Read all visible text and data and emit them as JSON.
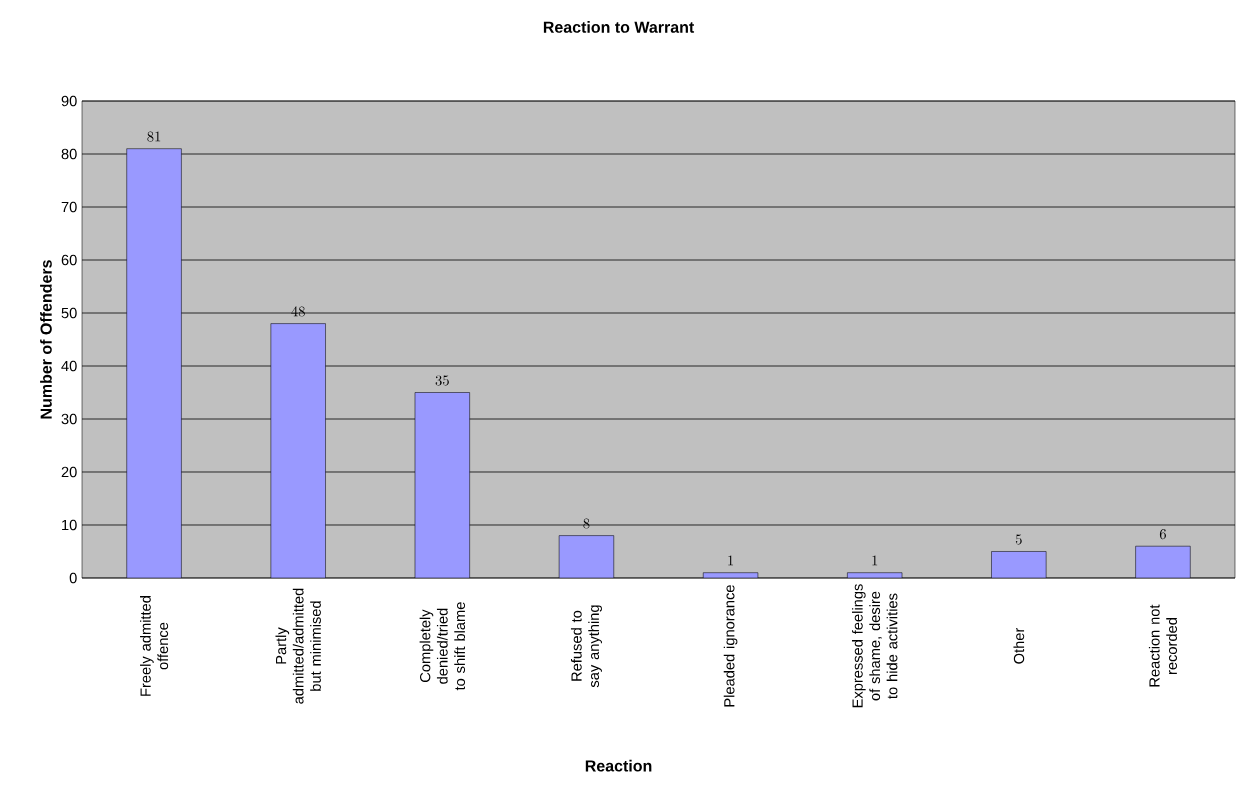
{
  "chart_data": {
    "type": "bar",
    "title": "Reaction to Warrant",
    "xlabel": "Reaction",
    "ylabel": "Number of Offenders",
    "categories": [
      "Freely admitted offence",
      "Partly admitted/admitted but minimised",
      "Completely denied/tried to shift blame",
      "Refused to say anything",
      "Pleaded ignorance",
      "Expressed feelings of shame, desire to hide activities",
      "Other",
      "Reaction not recorded"
    ],
    "values": [
      81,
      48,
      35,
      8,
      1,
      1,
      5,
      6
    ],
    "color": "#9999ff",
    "ylim": [
      0,
      90
    ],
    "yticks": [
      0,
      10,
      20,
      30,
      40,
      50,
      60,
      70,
      80,
      90
    ],
    "grid": "y",
    "data_labels": true
  }
}
